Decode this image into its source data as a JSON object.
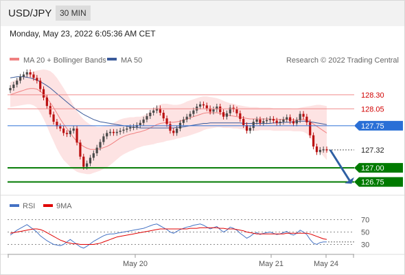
{
  "header": {
    "symbol": "USD/JPY",
    "timeframe": "30 MIN",
    "datetime": "Monday, May 23, 2022 6:05:36 AM CET"
  },
  "legend": {
    "ma20": "MA 20 + Bollinger Bands",
    "ma50": "MA 50",
    "rsi": "RSI",
    "ma9": "9MA",
    "credit": "Research © 2022 Trading Central"
  },
  "colors": {
    "up": "#4a4a4a",
    "down": "#bb1111",
    "ma20": "#f08080",
    "ma50": "#3a5a9a",
    "band_fill": "#fde3e3",
    "support": "#007a00",
    "pivot": "#2a6fd6",
    "resistance": "#f08a8a",
    "rsi": "#4472c4",
    "rsi_ma": "#e00000",
    "arrow": "#2e5fa3"
  },
  "chart_data": [
    {
      "type": "candlestick",
      "title": "",
      "ylim": [
        126.55,
        128.75
      ],
      "x_labels": [
        "May 20",
        "May 21",
        "May 24"
      ],
      "levels": [
        {
          "value": 128.3,
          "label": "128.30",
          "kind": "resistance"
        },
        {
          "value": 128.05,
          "label": "128.05",
          "kind": "resistance"
        },
        {
          "value": 127.75,
          "label": "127.75",
          "kind": "pivot"
        },
        {
          "value": 127.32,
          "label": "127.32",
          "kind": "last"
        },
        {
          "value": 127.0,
          "label": "127.00",
          "kind": "support"
        },
        {
          "value": 126.75,
          "label": "126.75",
          "kind": "support"
        }
      ],
      "closes": [
        128.42,
        128.48,
        128.55,
        128.62,
        128.66,
        128.7,
        128.66,
        128.6,
        128.55,
        128.4,
        128.25,
        128.1,
        127.95,
        127.82,
        127.74,
        127.7,
        127.62,
        127.6,
        127.66,
        127.7,
        127.45,
        127.2,
        127.02,
        127.08,
        127.18,
        127.26,
        127.36,
        127.46,
        127.56,
        127.62,
        127.64,
        127.62,
        127.64,
        127.66,
        127.68,
        127.7,
        127.72,
        127.73,
        127.76,
        127.8,
        127.86,
        127.92,
        127.98,
        128.02,
        128.06,
        127.98,
        127.88,
        127.78,
        127.66,
        127.62,
        127.7,
        127.8,
        127.86,
        127.91,
        127.96,
        128.02,
        128.09,
        128.13,
        128.11,
        128.06,
        128.0,
        128.04,
        128.09,
        127.99,
        127.91,
        127.97,
        128.07,
        128.04,
        127.97,
        127.87,
        127.76,
        127.66,
        127.71,
        127.82,
        127.86,
        127.8,
        127.83,
        127.85,
        127.87,
        127.84,
        127.8,
        127.82,
        127.86,
        127.9,
        127.83,
        127.79,
        127.85,
        127.96,
        127.91,
        127.81,
        127.58,
        127.38,
        127.28,
        127.32,
        127.33,
        127.32
      ],
      "ma20": [
        128.3,
        128.32,
        128.34,
        128.36,
        128.38,
        128.4,
        128.41,
        128.41,
        128.4,
        128.36,
        128.31,
        128.24,
        128.16,
        128.07,
        127.97,
        127.87,
        127.78,
        127.7,
        127.62,
        127.54,
        127.47,
        127.42,
        127.38,
        127.35,
        127.33,
        127.33,
        127.33,
        127.34,
        127.36,
        127.38,
        127.41,
        127.45,
        127.49,
        127.53,
        127.56,
        127.58,
        127.6,
        127.61,
        127.63,
        127.64,
        127.66,
        127.68,
        127.71,
        127.74,
        127.77,
        127.79,
        127.8,
        127.81,
        127.81,
        127.81,
        127.82,
        127.83,
        127.85,
        127.87,
        127.89,
        127.91,
        127.93,
        127.95,
        127.97,
        127.98,
        127.98,
        127.98,
        127.98,
        127.97,
        127.95,
        127.94,
        127.93,
        127.92,
        127.91,
        127.9,
        127.89,
        127.88,
        127.87,
        127.87,
        127.87,
        127.87,
        127.87,
        127.87,
        127.87,
        127.86,
        127.86,
        127.86,
        127.86,
        127.86,
        127.86,
        127.85,
        127.85,
        127.86,
        127.86,
        127.85,
        127.82,
        127.78,
        127.74,
        127.7,
        127.66,
        127.62
      ],
      "ma50": [
        128.6,
        128.61,
        128.62,
        128.62,
        128.62,
        128.61,
        128.6,
        128.58,
        128.56,
        128.53,
        128.5,
        128.46,
        128.42,
        128.37,
        128.32,
        128.27,
        128.22,
        128.17,
        128.12,
        128.07,
        128.03,
        127.99,
        127.95,
        127.92,
        127.89,
        127.86,
        127.84,
        127.82,
        127.81,
        127.8,
        127.79,
        127.78,
        127.77,
        127.76,
        127.75,
        127.74,
        127.73,
        127.72,
        127.72,
        127.71,
        127.71,
        127.71,
        127.71,
        127.71,
        127.71,
        127.71,
        127.71,
        127.71,
        127.71,
        127.71,
        127.72,
        127.72,
        127.73,
        127.74,
        127.75,
        127.76,
        127.77,
        127.78,
        127.79,
        127.79,
        127.8,
        127.8,
        127.8,
        127.8,
        127.8,
        127.8,
        127.8,
        127.8,
        127.8,
        127.8,
        127.79,
        127.79,
        127.79,
        127.79,
        127.79,
        127.79,
        127.79,
        127.79,
        127.79,
        127.8,
        127.8,
        127.8,
        127.81,
        127.81,
        127.81,
        127.82,
        127.82,
        127.83,
        127.83,
        127.83,
        127.82,
        127.81,
        127.8,
        127.79,
        127.78,
        127.77
      ],
      "band_width": [
        0.22,
        0.23,
        0.24,
        0.25,
        0.26,
        0.27,
        0.28,
        0.3,
        0.33,
        0.38,
        0.44,
        0.5,
        0.56,
        0.6,
        0.63,
        0.64,
        0.64,
        0.62,
        0.6,
        0.57,
        0.54,
        0.51,
        0.48,
        0.46,
        0.44,
        0.42,
        0.4,
        0.39,
        0.38,
        0.37,
        0.36,
        0.35,
        0.34,
        0.33,
        0.32,
        0.31,
        0.3,
        0.29,
        0.28,
        0.27,
        0.27,
        0.28,
        0.3,
        0.32,
        0.33,
        0.34,
        0.34,
        0.33,
        0.32,
        0.31,
        0.3,
        0.3,
        0.3,
        0.31,
        0.31,
        0.31,
        0.31,
        0.31,
        0.3,
        0.29,
        0.28,
        0.27,
        0.26,
        0.25,
        0.24,
        0.23,
        0.22,
        0.22,
        0.21,
        0.21,
        0.21,
        0.21,
        0.21,
        0.21,
        0.21,
        0.2,
        0.2,
        0.2,
        0.2,
        0.2,
        0.2,
        0.2,
        0.2,
        0.2,
        0.2,
        0.2,
        0.2,
        0.21,
        0.22,
        0.24,
        0.28,
        0.33,
        0.38,
        0.42,
        0.45,
        0.48
      ],
      "forecast_arrow": {
        "from": 127.32,
        "to": 126.78
      }
    },
    {
      "type": "line",
      "title": "",
      "ylim": [
        15,
        85
      ],
      "y_ticks": [
        "70",
        "50",
        "30"
      ],
      "series": [
        {
          "name": "RSI",
          "values": [
            45,
            49,
            53,
            56,
            59,
            62,
            58,
            54,
            50,
            44,
            40,
            36,
            33,
            30,
            29,
            28,
            30,
            34,
            38,
            34,
            30,
            26,
            24,
            27,
            31,
            35,
            38,
            41,
            44,
            46,
            47,
            47,
            48,
            49,
            50,
            51,
            52,
            53,
            54,
            55,
            56,
            58,
            60,
            62,
            63,
            60,
            57,
            54,
            50,
            48,
            51,
            54,
            56,
            58,
            59,
            61,
            62,
            63,
            61,
            58,
            55,
            57,
            59,
            54,
            50,
            53,
            58,
            56,
            53,
            48,
            44,
            40,
            43,
            47,
            49,
            46,
            48,
            49,
            50,
            48,
            46,
            47,
            49,
            51,
            47,
            45,
            48,
            53,
            50,
            46,
            38,
            32,
            30,
            33,
            34,
            34
          ]
        },
        {
          "name": "9MA",
          "values": [
            48,
            49,
            50,
            51,
            52,
            53,
            54,
            55,
            55,
            54,
            52,
            49,
            46,
            43,
            40,
            37,
            35,
            33,
            32,
            31,
            31,
            30,
            30,
            30,
            30,
            30,
            31,
            32,
            34,
            36,
            38,
            40,
            42,
            43,
            44,
            45,
            46,
            47,
            48,
            49,
            50,
            51,
            52,
            53,
            54,
            55,
            55,
            55,
            55,
            55,
            55,
            55,
            55,
            55,
            56,
            56,
            56,
            57,
            57,
            57,
            57,
            57,
            57,
            56,
            56,
            55,
            55,
            55,
            54,
            53,
            52,
            50,
            49,
            48,
            47,
            47,
            47,
            47,
            47,
            47,
            47,
            47,
            47,
            48,
            48,
            48,
            48,
            48,
            48,
            48,
            47,
            45,
            43,
            41,
            39,
            38
          ]
        }
      ]
    }
  ]
}
